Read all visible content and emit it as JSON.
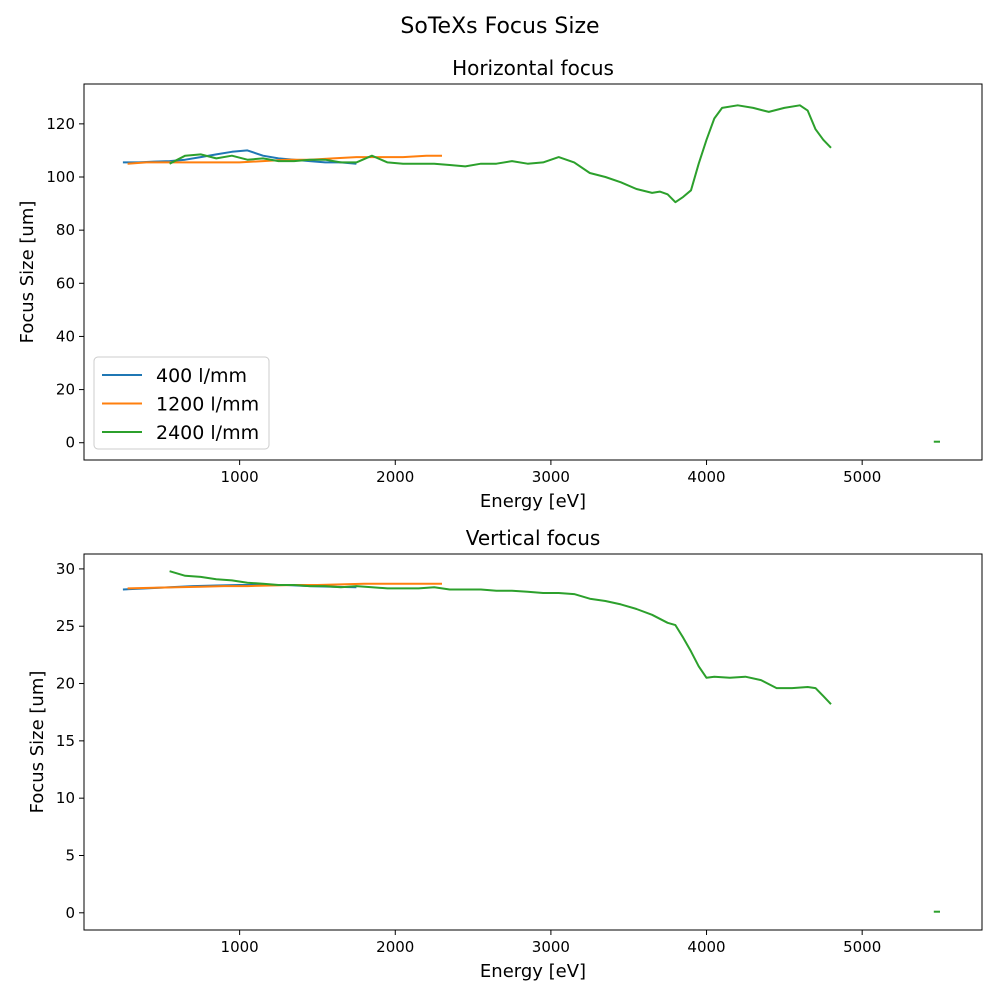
{
  "figure_title": "SoTeXs Focus Size",
  "colors": {
    "400 l/mm": "#1f77b4",
    "1200 l/mm": "#ff7f0e",
    "2400 l/mm": "#2ca02c"
  },
  "chart_data": [
    {
      "type": "line",
      "title": "Horizontal focus",
      "xlabel": "Energy [eV]",
      "ylabel": "Focus Size [um]",
      "xlim": [
        0,
        5770
      ],
      "ylim": [
        -6.5,
        135
      ],
      "xticks": [
        1000,
        2000,
        3000,
        4000,
        5000
      ],
      "yticks": [
        0,
        20,
        40,
        60,
        80,
        100,
        120
      ],
      "grid": false,
      "legend": {
        "position": "lower-left",
        "entries": [
          "400 l/mm",
          "1200 l/mm",
          "2400 l/mm"
        ]
      },
      "series": [
        {
          "name": "400 l/mm",
          "x": [
            250,
            350,
            450,
            550,
            650,
            750,
            850,
            950,
            1050,
            1150,
            1250,
            1350,
            1450,
            1550,
            1650,
            1750
          ],
          "y": [
            105.5,
            105.5,
            105.8,
            106,
            106.5,
            107.5,
            108.5,
            109.5,
            110,
            108,
            107,
            106.5,
            106,
            105.5,
            105.5,
            105
          ]
        },
        {
          "name": "1200 l/mm",
          "x": [
            280,
            400,
            550,
            700,
            850,
            1000,
            1150,
            1300,
            1450,
            1600,
            1750,
            1900,
            2050,
            2200,
            2300
          ],
          "y": [
            105,
            105.5,
            105.5,
            105.5,
            105.5,
            105.5,
            106,
            106.5,
            106.5,
            107,
            107.5,
            107.5,
            107.5,
            108,
            108
          ]
        },
        {
          "name": "2400 l/mm",
          "x": [
            550,
            650,
            750,
            850,
            950,
            1050,
            1150,
            1250,
            1350,
            1450,
            1550,
            1650,
            1750,
            1850,
            1950,
            2050,
            2150,
            2250,
            2350,
            2450,
            2550,
            2650,
            2750,
            2850,
            2950,
            3050,
            3150,
            3250,
            3350,
            3450,
            3550,
            3650,
            3700,
            3750,
            3800,
            3850,
            3900,
            3950,
            4000,
            4050,
            4100,
            4200,
            4300,
            4400,
            4500,
            4600,
            4650,
            4700,
            4750,
            4800
          ],
          "y": [
            105,
            108,
            108.5,
            107,
            108,
            106.5,
            107,
            106,
            106,
            106.5,
            106.5,
            105.5,
            105.5,
            108,
            105.5,
            105,
            105,
            105,
            104.5,
            104,
            105,
            105,
            106,
            105,
            105.5,
            107.5,
            105.5,
            101.5,
            100,
            98,
            95.5,
            94,
            94.5,
            93.5,
            90.5,
            92.5,
            95,
            105,
            114,
            122,
            126,
            127,
            126,
            124.5,
            126,
            127,
            125,
            118,
            114,
            111
          ]
        },
        {
          "name": "2400 l/mm",
          "x": [
            5460,
            5500
          ],
          "y": [
            0.4,
            0.4
          ]
        }
      ]
    },
    {
      "type": "line",
      "title": "Vertical focus",
      "xlabel": "Energy [eV]",
      "ylabel": "Focus Size [um]",
      "xlim": [
        0,
        5770
      ],
      "ylim": [
        -1.5,
        31.3
      ],
      "xticks": [
        1000,
        2000,
        3000,
        4000,
        5000
      ],
      "yticks": [
        0,
        5,
        10,
        15,
        20,
        25,
        30
      ],
      "grid": false,
      "series": [
        {
          "name": "400 l/mm",
          "x": [
            250,
            400,
            550,
            700,
            850,
            1000,
            1150,
            1300,
            1450,
            1600,
            1750
          ],
          "y": [
            28.2,
            28.3,
            28.4,
            28.5,
            28.55,
            28.6,
            28.6,
            28.6,
            28.5,
            28.45,
            28.4
          ]
        },
        {
          "name": "1200 l/mm",
          "x": [
            280,
            450,
            600,
            750,
            900,
            1050,
            1200,
            1350,
            1500,
            1650,
            1800,
            1950,
            2100,
            2300
          ],
          "y": [
            28.3,
            28.35,
            28.4,
            28.45,
            28.5,
            28.5,
            28.55,
            28.6,
            28.6,
            28.65,
            28.7,
            28.7,
            28.7,
            28.7
          ]
        },
        {
          "name": "2400 l/mm",
          "x": [
            550,
            650,
            750,
            850,
            950,
            1050,
            1150,
            1250,
            1350,
            1450,
            1550,
            1650,
            1750,
            1850,
            1950,
            2050,
            2150,
            2250,
            2350,
            2450,
            2550,
            2650,
            2750,
            2850,
            2950,
            3050,
            3150,
            3250,
            3350,
            3450,
            3550,
            3650,
            3750,
            3800,
            3850,
            3900,
            3950,
            4000,
            4050,
            4150,
            4250,
            4350,
            4450,
            4550,
            4650,
            4700,
            4750,
            4800
          ],
          "y": [
            29.8,
            29.4,
            29.3,
            29.1,
            29,
            28.8,
            28.7,
            28.6,
            28.6,
            28.5,
            28.5,
            28.4,
            28.5,
            28.4,
            28.3,
            28.3,
            28.3,
            28.4,
            28.2,
            28.2,
            28.2,
            28.1,
            28.1,
            28,
            27.9,
            27.9,
            27.8,
            27.4,
            27.2,
            26.9,
            26.5,
            26,
            25.3,
            25.1,
            24,
            22.8,
            21.5,
            20.5,
            20.6,
            20.5,
            20.6,
            20.3,
            19.6,
            19.6,
            19.7,
            19.6,
            18.9,
            18.2
          ]
        },
        {
          "name": "2400 l/mm",
          "x": [
            5460,
            5500
          ],
          "y": [
            0.1,
            0.1
          ]
        }
      ]
    }
  ]
}
